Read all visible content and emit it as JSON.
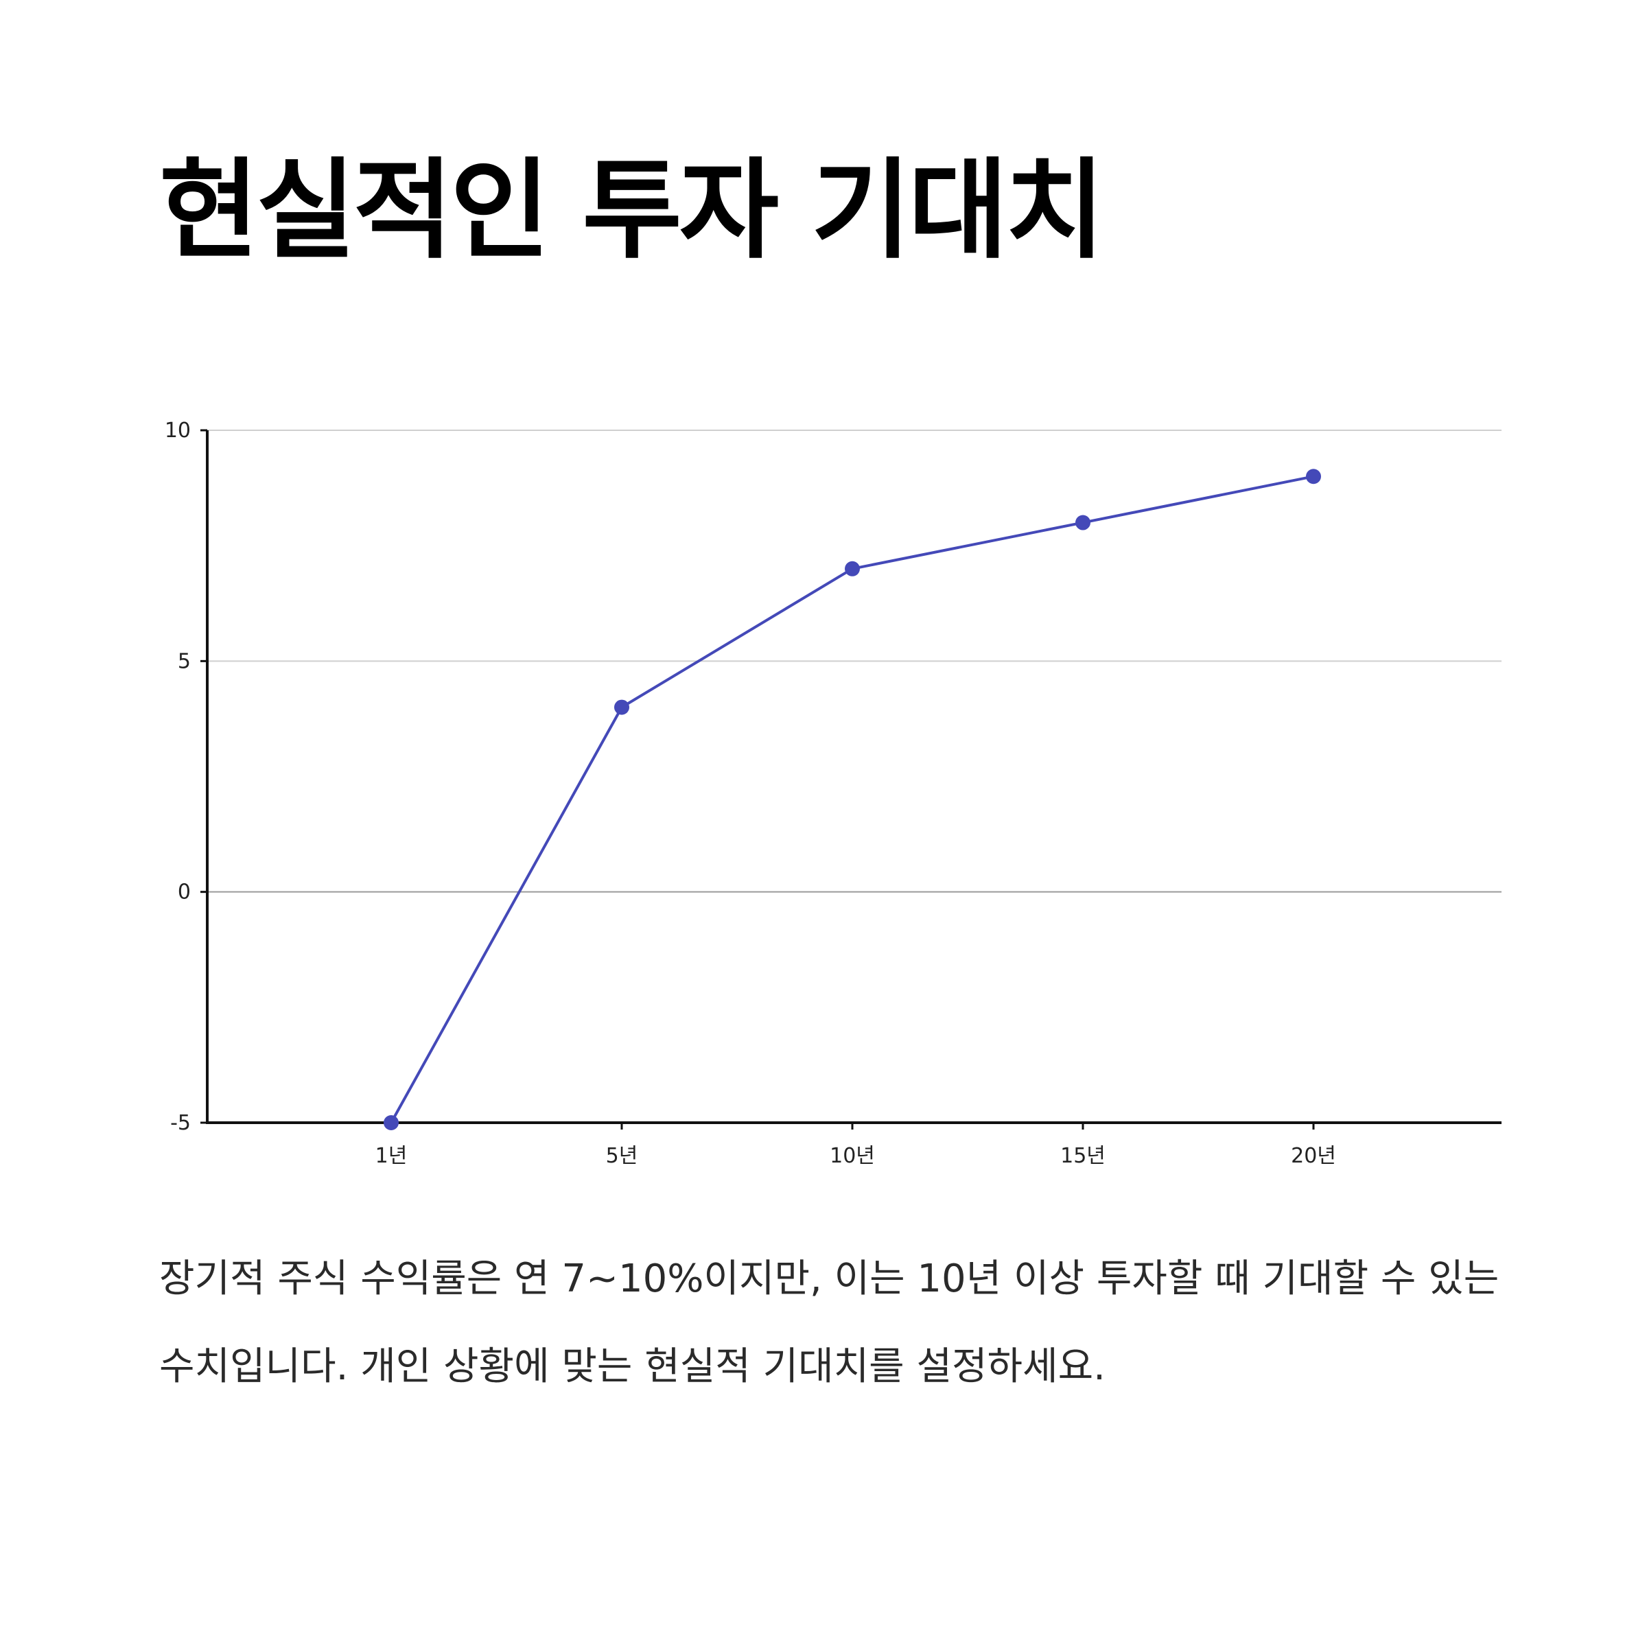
{
  "title": "현실적인 투자 기대치",
  "caption": "장기적 주식 수익률은 연 7~10%이지만, 이는 10년 이상 투자할 때 기대할 수 있는 수치입니다. 개인 상황에 맞는 현실적 기대치를 설정하세요.",
  "chart_data": {
    "type": "line",
    "categories": [
      "1년",
      "5년",
      "10년",
      "15년",
      "20년"
    ],
    "series": [
      {
        "values": [
          -5,
          4,
          7,
          8,
          9
        ],
        "color": "#4449b8"
      }
    ],
    "ylim": [
      -5,
      10
    ],
    "yticks": [
      -5,
      0,
      5,
      10
    ],
    "grid": true,
    "title": "",
    "xlabel": "",
    "ylabel": ""
  }
}
